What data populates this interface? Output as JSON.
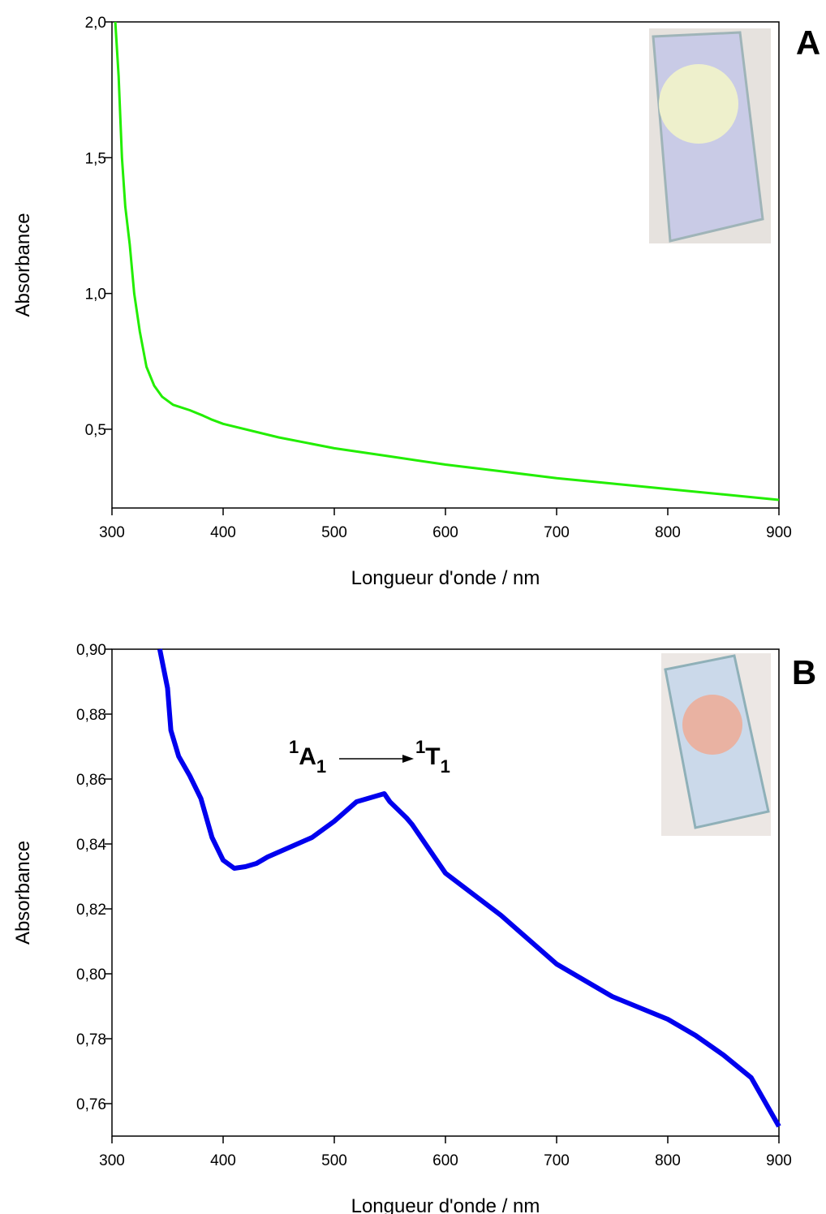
{
  "chart_data": [
    {
      "type": "line",
      "panel_label": "A",
      "color": "#22ee00",
      "x_label": "Longueur d'onde / nm",
      "y_label": "Absorbance",
      "x": [
        303,
        306,
        309,
        312,
        316,
        320,
        325,
        331,
        338,
        345,
        355,
        370,
        382,
        390,
        400,
        450,
        500,
        550,
        600,
        650,
        700,
        750,
        800,
        850,
        900
      ],
      "values": [
        2.0,
        1.8,
        1.5,
        1.32,
        1.18,
        1.0,
        0.86,
        0.73,
        0.66,
        0.62,
        0.59,
        0.57,
        0.55,
        0.535,
        0.52,
        0.47,
        0.43,
        0.4,
        0.37,
        0.345,
        0.32,
        0.3,
        0.28,
        0.26,
        0.24
      ],
      "xlim": [
        300,
        900
      ],
      "xticks": [
        300,
        400,
        500,
        600,
        700,
        800,
        900
      ],
      "ylim": [
        0.21,
        2.0
      ],
      "yticks": [
        {
          "value": 0.5,
          "label": "0,5"
        },
        {
          "value": 1.0,
          "label": "1,0"
        },
        {
          "value": 1.5,
          "label": "1,5"
        },
        {
          "value": 2.0,
          "label": "2,0"
        }
      ]
    },
    {
      "type": "line",
      "panel_label": "B",
      "color": "#0000ee",
      "x_label": "Longueur d'onde / nm",
      "y_label": "Absorbance",
      "annotation": {
        "from": [
          "1",
          "A",
          "1"
        ],
        "to": [
          "1",
          "T",
          "1"
        ]
      },
      "x": [
        343,
        350,
        353,
        360,
        370,
        380,
        390,
        400,
        410,
        420,
        430,
        440,
        460,
        480,
        500,
        520,
        540,
        545,
        550,
        565,
        570,
        600,
        650,
        700,
        750,
        800,
        825,
        850,
        875,
        900
      ],
      "values": [
        0.9,
        0.888,
        0.875,
        0.867,
        0.861,
        0.854,
        0.842,
        0.835,
        0.8325,
        0.833,
        0.834,
        0.836,
        0.839,
        0.842,
        0.847,
        0.853,
        0.855,
        0.8555,
        0.853,
        0.848,
        0.846,
        0.831,
        0.818,
        0.803,
        0.793,
        0.786,
        0.781,
        0.775,
        0.768,
        0.753
      ],
      "xlim": [
        300,
        900
      ],
      "xticks": [
        300,
        400,
        500,
        600,
        700,
        800,
        900
      ],
      "ylim": [
        0.75,
        0.9
      ],
      "yticks": [
        {
          "value": 0.76,
          "label": "0,76"
        },
        {
          "value": 0.78,
          "label": "0,78"
        },
        {
          "value": 0.8,
          "label": "0,80"
        },
        {
          "value": 0.82,
          "label": "0,82"
        },
        {
          "value": 0.84,
          "label": "0,84"
        },
        {
          "value": 0.86,
          "label": "0,86"
        },
        {
          "value": 0.88,
          "label": "0,88"
        },
        {
          "value": 0.9,
          "label": "0,90"
        }
      ]
    }
  ]
}
